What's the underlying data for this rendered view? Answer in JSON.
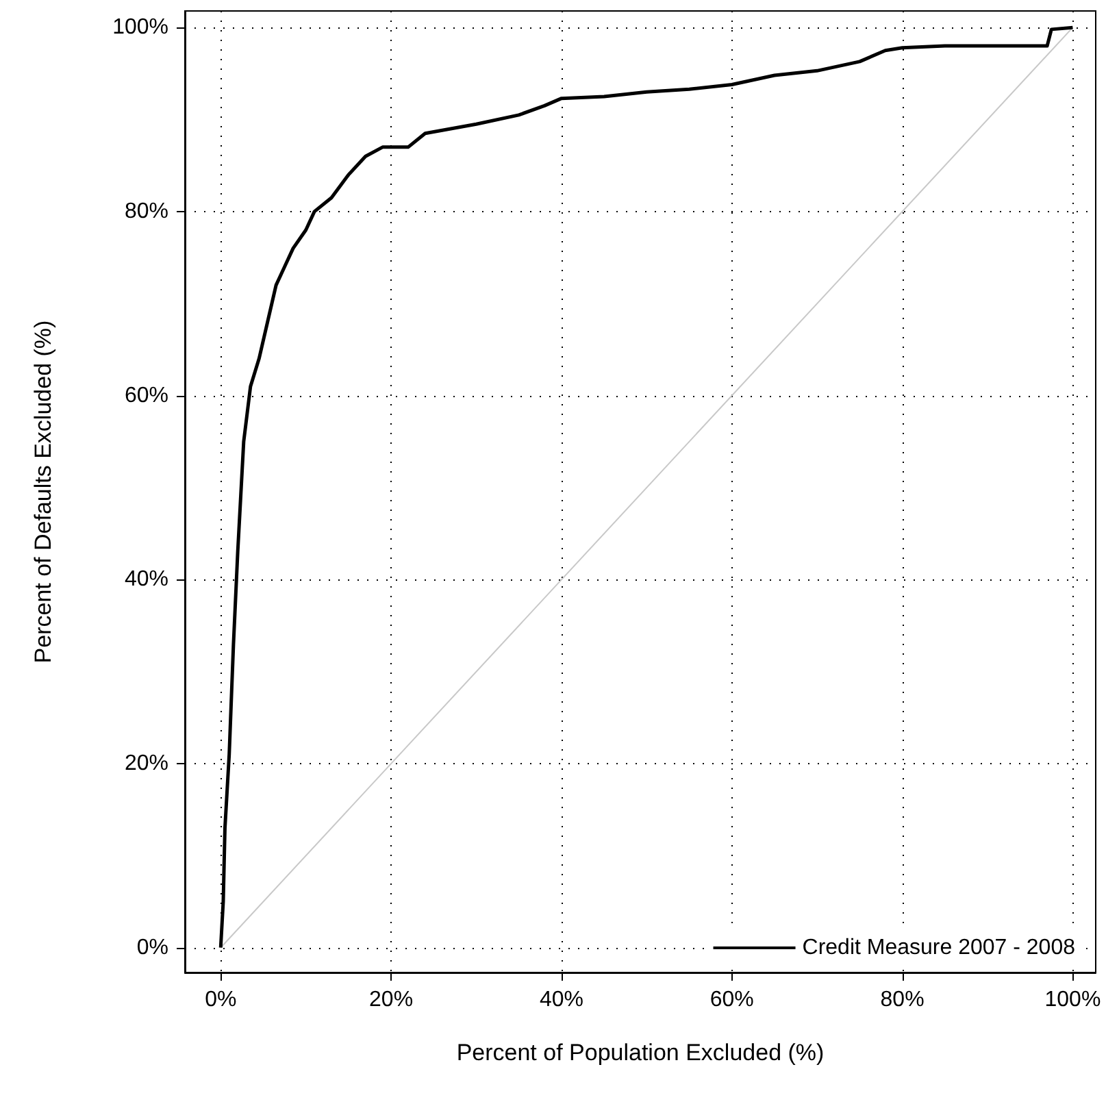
{
  "chart_data": {
    "type": "line",
    "xlabel": "Percent of Population Excluded (%)",
    "ylabel": "Percent of Defaults Excluded (%)",
    "xlim": [
      -4.2,
      102.7
    ],
    "ylim": [
      -2.7,
      101.8
    ],
    "xticks": [
      {
        "value": 0,
        "label": "0%"
      },
      {
        "value": 20,
        "label": "20%"
      },
      {
        "value": 40,
        "label": "40%"
      },
      {
        "value": 60,
        "label": "60%"
      },
      {
        "value": 80,
        "label": "80%"
      },
      {
        "value": 100,
        "label": "100%"
      }
    ],
    "yticks": [
      {
        "value": 0,
        "label": "0%"
      },
      {
        "value": 20,
        "label": "20%"
      },
      {
        "value": 40,
        "label": "40%"
      },
      {
        "value": 60,
        "label": "60%"
      },
      {
        "value": 80,
        "label": "80%"
      },
      {
        "value": 100,
        "label": "100%"
      }
    ],
    "grid": true,
    "legend": "bottom right",
    "marker": "none",
    "line_style": "solid",
    "series": [
      {
        "name": "Credit Measure 2007 - 2008",
        "color": "#000000",
        "x": [
          0,
          0.3,
          0.5,
          1,
          1.5,
          2,
          2.7,
          3.5,
          4.5,
          5.5,
          6.5,
          7.5,
          8.5,
          10,
          11,
          13,
          15,
          17,
          19,
          22,
          24,
          27,
          30,
          35,
          38,
          40,
          45,
          50,
          55,
          60,
          65,
          70,
          75,
          78,
          80,
          85,
          97,
          97.5,
          100
        ],
        "values": [
          0,
          5,
          13,
          21,
          33,
          43,
          55,
          61,
          64,
          68,
          72,
          74,
          76,
          78,
          80,
          81.5,
          84,
          86,
          87,
          87,
          88.5,
          89,
          89.5,
          90.5,
          91.5,
          92.3,
          92.5,
          93,
          93.3,
          93.8,
          94.8,
          95.3,
          96.3,
          97.5,
          97.8,
          98,
          98,
          99.8,
          100
        ]
      },
      {
        "color": "#c8c8c8",
        "x": [
          0,
          100
        ],
        "values": [
          0,
          100
        ]
      }
    ]
  }
}
